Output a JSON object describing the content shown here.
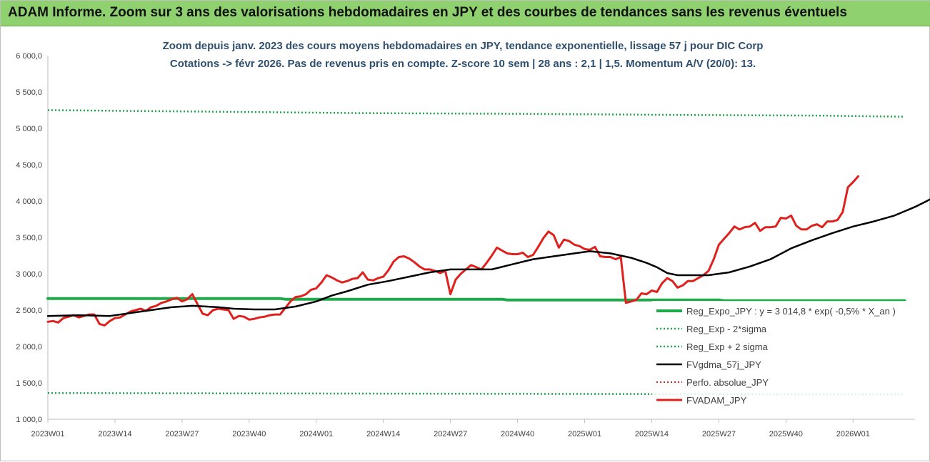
{
  "banner": {
    "title": "ADAM Informe. Zoom sur 3 ans des valorisations hebdomadaires en JPY et des courbes de tendances sans les revenus éventuels"
  },
  "colors": {
    "banner_bg": "#8fd16e",
    "reg_expo": "#1faa4a",
    "sigma_lines": "#1faa4a",
    "fvgdma": "#000000",
    "perfo": "#e0201c",
    "fvadam": "#e0201c",
    "title": "#2f4f6f"
  },
  "chart_data": {
    "type": "line",
    "title": "Zoom depuis janv. 2023 des cours moyens hebdomadaires en JPY, tendance exponentielle, lissage 57 j pour DIC Corp",
    "subtitle": "Cotations -> févr 2026. Pas de revenus pris en compte. Z-score 10 sem | 28 ans : 2,1 | 1,5. Momentum A/V (20/0): 13.",
    "xlabel": "",
    "ylabel": "",
    "ylim": [
      1000,
      6000
    ],
    "xlim": [
      0,
      168
    ],
    "grid": false,
    "legend_position": "bottom-right",
    "y_ticks": [
      "1 000,0",
      "1 500,0",
      "2 000,0",
      "2 500,0",
      "3 000,0",
      "3 500,0",
      "4 000,0",
      "4 500,0",
      "5 000,0",
      "5 500,0",
      "6 000,0"
    ],
    "x_ticks": [
      {
        "label": "2023W01",
        "x": 0
      },
      {
        "label": "2023W14",
        "x": 13
      },
      {
        "label": "2023W27",
        "x": 26
      },
      {
        "label": "2023W40",
        "x": 39
      },
      {
        "label": "2024W01",
        "x": 52
      },
      {
        "label": "2024W14",
        "x": 65
      },
      {
        "label": "2024W27",
        "x": 78
      },
      {
        "label": "2024W40",
        "x": 91
      },
      {
        "label": "2025W01",
        "x": 104
      },
      {
        "label": "2025W14",
        "x": 117
      },
      {
        "label": "2025W27",
        "x": 130
      },
      {
        "label": "2025W40",
        "x": 143
      },
      {
        "label": "2026W01",
        "x": 156
      }
    ],
    "series": [
      {
        "name": "Reg_Expo_JPY : y = 3 014,8 * exp( -0,5% *  X_an )",
        "style": "solid-thick",
        "points": [
          [
            0,
            2660
          ],
          [
            45,
            2660
          ],
          [
            46,
            2650
          ],
          [
            88,
            2650
          ],
          [
            89,
            2640
          ],
          [
            130,
            2640
          ],
          [
            131,
            2630
          ],
          [
            166,
            2630
          ]
        ]
      },
      {
        "name": "Reg_Exp - 2*sigma",
        "style": "dotted",
        "points": [
          [
            0,
            1360
          ],
          [
            166,
            1340
          ]
        ]
      },
      {
        "name": "Reg_Exp + 2 sigma",
        "style": "dotted",
        "points": [
          [
            0,
            5250
          ],
          [
            30,
            5230
          ],
          [
            60,
            5210
          ],
          [
            90,
            5200
          ],
          [
            120,
            5185
          ],
          [
            150,
            5175
          ],
          [
            166,
            5160
          ]
        ]
      },
      {
        "name": "FVgdma_57j_JPY",
        "style": "solid",
        "points": [
          [
            0,
            2420
          ],
          [
            6,
            2430
          ],
          [
            12,
            2420
          ],
          [
            18,
            2480
          ],
          [
            24,
            2540
          ],
          [
            28,
            2560
          ],
          [
            33,
            2540
          ],
          [
            36,
            2520
          ],
          [
            40,
            2510
          ],
          [
            44,
            2510
          ],
          [
            48,
            2550
          ],
          [
            52,
            2620
          ],
          [
            55,
            2700
          ],
          [
            58,
            2760
          ],
          [
            62,
            2850
          ],
          [
            66,
            2900
          ],
          [
            70,
            2960
          ],
          [
            74,
            3020
          ],
          [
            78,
            3060
          ],
          [
            82,
            3060
          ],
          [
            86,
            3060
          ],
          [
            90,
            3130
          ],
          [
            94,
            3200
          ],
          [
            98,
            3240
          ],
          [
            102,
            3280
          ],
          [
            105,
            3310
          ],
          [
            109,
            3280
          ],
          [
            113,
            3220
          ],
          [
            116,
            3150
          ],
          [
            118,
            3090
          ],
          [
            120,
            3010
          ],
          [
            122,
            2980
          ],
          [
            128,
            2980
          ],
          [
            132,
            3020
          ],
          [
            136,
            3100
          ],
          [
            140,
            3200
          ],
          [
            144,
            3350
          ],
          [
            148,
            3460
          ],
          [
            152,
            3560
          ],
          [
            156,
            3650
          ],
          [
            160,
            3720
          ],
          [
            164,
            3800
          ],
          [
            168,
            3920
          ],
          [
            170,
            3990
          ],
          [
            173,
            4100
          ]
        ]
      },
      {
        "name": "Perfo. absolue_JPY",
        "style": "dotted",
        "points": []
      },
      {
        "name": "FVADAM_JPY",
        "style": "solid-thick",
        "points": [
          [
            0,
            2340
          ],
          [
            1,
            2350
          ],
          [
            2,
            2330
          ],
          [
            3,
            2390
          ],
          [
            4,
            2410
          ],
          [
            5,
            2430
          ],
          [
            6,
            2400
          ],
          [
            7,
            2420
          ],
          [
            8,
            2440
          ],
          [
            9,
            2440
          ],
          [
            10,
            2310
          ],
          [
            11,
            2290
          ],
          [
            12,
            2350
          ],
          [
            13,
            2390
          ],
          [
            14,
            2400
          ],
          [
            15,
            2440
          ],
          [
            16,
            2480
          ],
          [
            17,
            2500
          ],
          [
            18,
            2520
          ],
          [
            19,
            2490
          ],
          [
            20,
            2540
          ],
          [
            21,
            2560
          ],
          [
            22,
            2600
          ],
          [
            23,
            2620
          ],
          [
            24,
            2650
          ],
          [
            25,
            2670
          ],
          [
            26,
            2620
          ],
          [
            27,
            2650
          ],
          [
            28,
            2720
          ],
          [
            29,
            2580
          ],
          [
            30,
            2450
          ],
          [
            31,
            2430
          ],
          [
            32,
            2500
          ],
          [
            33,
            2520
          ],
          [
            34,
            2510
          ],
          [
            35,
            2500
          ],
          [
            36,
            2380
          ],
          [
            37,
            2420
          ],
          [
            38,
            2410
          ],
          [
            39,
            2370
          ],
          [
            40,
            2380
          ],
          [
            41,
            2400
          ],
          [
            42,
            2410
          ],
          [
            43,
            2430
          ],
          [
            44,
            2440
          ],
          [
            45,
            2440
          ],
          [
            46,
            2530
          ],
          [
            47,
            2620
          ],
          [
            48,
            2680
          ],
          [
            49,
            2690
          ],
          [
            50,
            2720
          ],
          [
            51,
            2780
          ],
          [
            52,
            2800
          ],
          [
            53,
            2880
          ],
          [
            54,
            2980
          ],
          [
            55,
            2950
          ],
          [
            56,
            2910
          ],
          [
            57,
            2880
          ],
          [
            58,
            2900
          ],
          [
            59,
            2930
          ],
          [
            60,
            2940
          ],
          [
            61,
            3020
          ],
          [
            62,
            2920
          ],
          [
            63,
            2910
          ],
          [
            64,
            2940
          ],
          [
            65,
            2960
          ],
          [
            66,
            3050
          ],
          [
            67,
            3170
          ],
          [
            68,
            3230
          ],
          [
            69,
            3240
          ],
          [
            70,
            3210
          ],
          [
            71,
            3160
          ],
          [
            72,
            3100
          ],
          [
            73,
            3060
          ],
          [
            74,
            3060
          ],
          [
            75,
            3040
          ],
          [
            76,
            3010
          ],
          [
            77,
            3040
          ],
          [
            78,
            2720
          ],
          [
            79,
            2920
          ],
          [
            80,
            3000
          ],
          [
            81,
            3060
          ],
          [
            82,
            3120
          ],
          [
            83,
            3090
          ],
          [
            84,
            3060
          ],
          [
            85,
            3150
          ],
          [
            86,
            3250
          ],
          [
            87,
            3360
          ],
          [
            88,
            3320
          ],
          [
            89,
            3280
          ],
          [
            90,
            3270
          ],
          [
            91,
            3270
          ],
          [
            92,
            3290
          ],
          [
            93,
            3230
          ],
          [
            94,
            3260
          ],
          [
            95,
            3370
          ],
          [
            96,
            3490
          ],
          [
            97,
            3580
          ],
          [
            98,
            3530
          ],
          [
            99,
            3360
          ],
          [
            100,
            3470
          ],
          [
            101,
            3450
          ],
          [
            102,
            3400
          ],
          [
            103,
            3380
          ],
          [
            104,
            3340
          ],
          [
            105,
            3330
          ],
          [
            106,
            3370
          ],
          [
            107,
            3240
          ],
          [
            108,
            3230
          ],
          [
            109,
            3230
          ],
          [
            110,
            3200
          ],
          [
            111,
            3230
          ],
          [
            112,
            2600
          ],
          [
            113,
            2620
          ],
          [
            114,
            2640
          ],
          [
            115,
            2730
          ],
          [
            116,
            2720
          ],
          [
            117,
            2770
          ],
          [
            118,
            2750
          ],
          [
            119,
            2870
          ],
          [
            120,
            2940
          ],
          [
            121,
            2900
          ],
          [
            122,
            2810
          ],
          [
            123,
            2840
          ],
          [
            124,
            2900
          ],
          [
            125,
            2900
          ],
          [
            126,
            2940
          ],
          [
            127,
            2980
          ],
          [
            128,
            3040
          ],
          [
            129,
            3200
          ],
          [
            130,
            3400
          ],
          [
            131,
            3480
          ],
          [
            132,
            3560
          ],
          [
            133,
            3650
          ],
          [
            134,
            3610
          ],
          [
            135,
            3640
          ],
          [
            136,
            3650
          ],
          [
            137,
            3700
          ],
          [
            138,
            3590
          ],
          [
            139,
            3640
          ],
          [
            140,
            3640
          ],
          [
            141,
            3650
          ],
          [
            142,
            3770
          ],
          [
            143,
            3760
          ],
          [
            144,
            3800
          ],
          [
            145,
            3660
          ],
          [
            146,
            3610
          ],
          [
            147,
            3610
          ],
          [
            148,
            3660
          ],
          [
            149,
            3680
          ],
          [
            150,
            3640
          ],
          [
            151,
            3720
          ],
          [
            152,
            3720
          ],
          [
            153,
            3740
          ],
          [
            154,
            3850
          ],
          [
            155,
            4190
          ],
          [
            156,
            4260
          ],
          [
            157,
            4340
          ]
        ]
      }
    ],
    "legend": [
      {
        "label": "Reg_Expo_JPY : y = 3 014,8 * exp( -0,5% *  X_an )"
      },
      {
        "label": "Reg_Exp - 2*sigma"
      },
      {
        "label": "Reg_Exp + 2 sigma"
      },
      {
        "label": "FVgdma_57j_JPY"
      },
      {
        "label": "Perfo. absolue_JPY"
      },
      {
        "label": "FVADAM_JPY"
      }
    ]
  }
}
